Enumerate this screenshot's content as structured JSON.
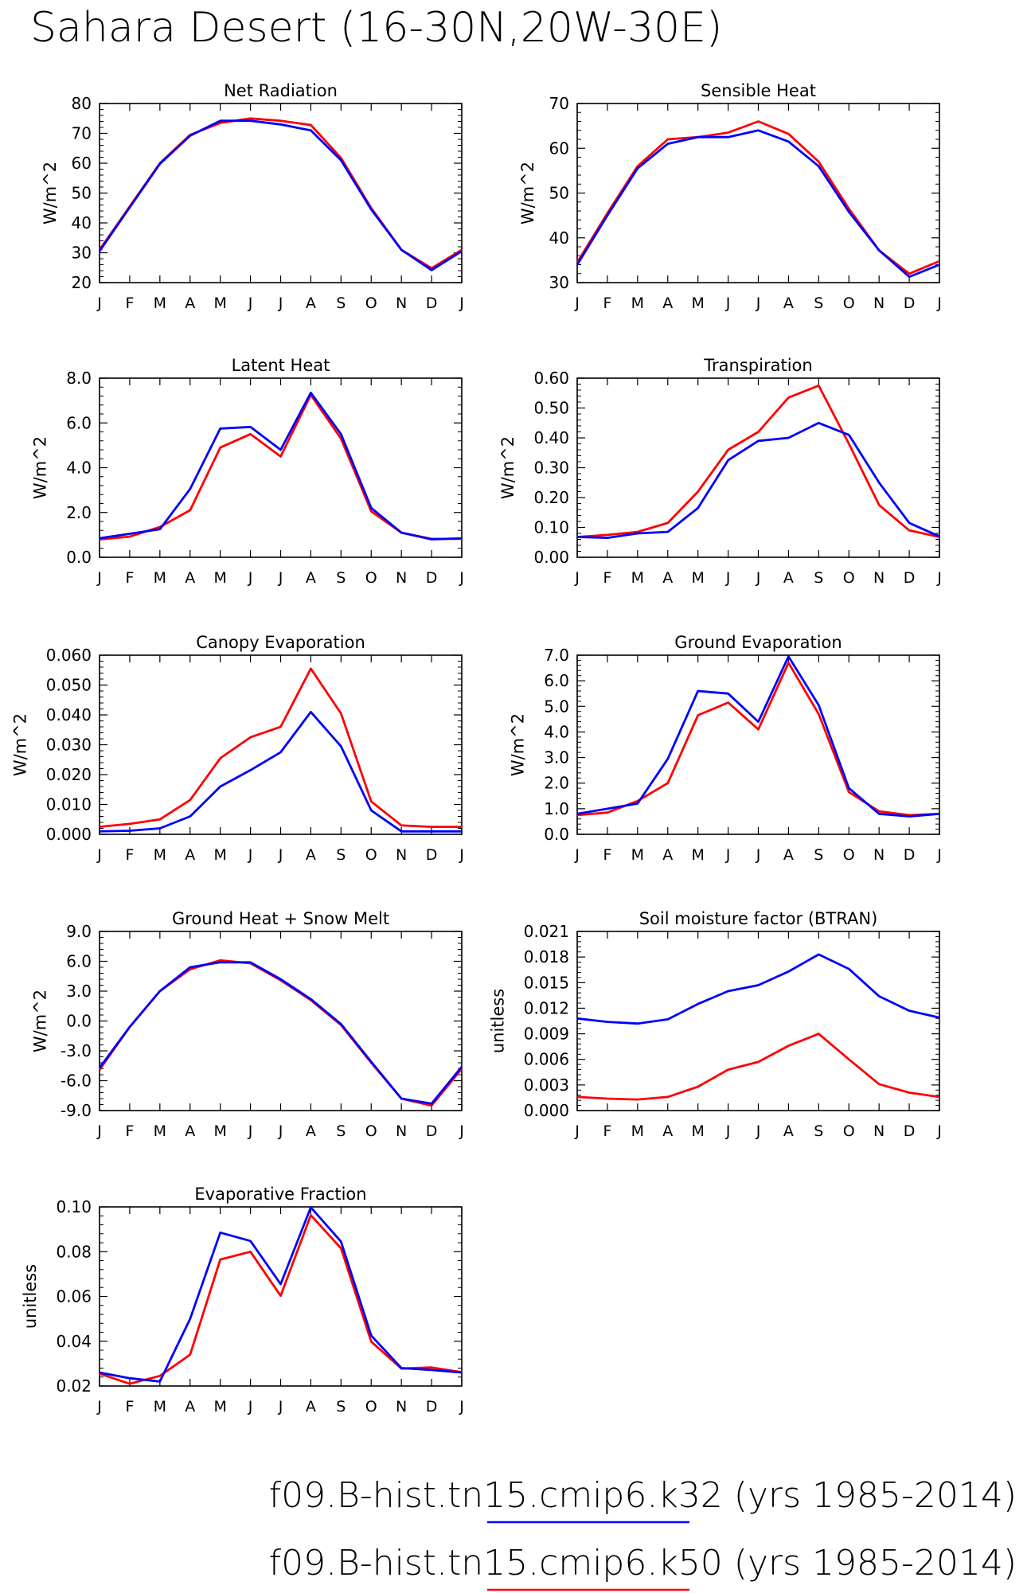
{
  "title": "Sahara Desert (16-30N,20W-30E)",
  "legend": [
    {
      "label": "f09.B-hist.tn15.cmip6.k32 (yrs 1985-2014)",
      "color": "#0000ff"
    },
    {
      "label": "f09.B-hist.tn15.cmip6.k50 (yrs 1985-2014)",
      "color": "#ff0000"
    }
  ],
  "chart_data": [
    {
      "type": "line",
      "title": "Net Radiation",
      "ylabel": "W/m^2",
      "categories": [
        "J",
        "F",
        "M",
        "A",
        "M",
        "J",
        "J",
        "A",
        "S",
        "O",
        "N",
        "D",
        "J"
      ],
      "ylim": [
        20,
        80
      ],
      "yticks": [
        20,
        30,
        40,
        50,
        60,
        70,
        80
      ],
      "ytick_labels": [
        "20",
        "30",
        "40",
        "50",
        "60",
        "70",
        "80"
      ],
      "series": [
        {
          "name": "f09.B-hist.tn15.cmip6.k50",
          "color": "#ff0000",
          "values": [
            31,
            45.5,
            60,
            69.5,
            73.5,
            75,
            74.2,
            72.8,
            61.8,
            45,
            31,
            24.8,
            31
          ]
        },
        {
          "name": "f09.B-hist.tn15.cmip6.k32",
          "color": "#0000ff",
          "values": [
            30.5,
            45.2,
            59.8,
            69.2,
            74.2,
            74.2,
            73,
            71,
            61,
            44.5,
            31,
            24.2,
            30.5
          ]
        }
      ]
    },
    {
      "type": "line",
      "title": "Sensible Heat",
      "ylabel": "W/m^2",
      "categories": [
        "J",
        "F",
        "M",
        "A",
        "M",
        "J",
        "J",
        "A",
        "S",
        "O",
        "N",
        "D",
        "J"
      ],
      "ylim": [
        30,
        70
      ],
      "yticks": [
        30,
        40,
        50,
        60,
        70
      ],
      "ytick_labels": [
        "30",
        "40",
        "50",
        "60",
        "70"
      ],
      "series": [
        {
          "name": "f09.B-hist.tn15.cmip6.k50",
          "color": "#ff0000",
          "values": [
            34.5,
            45.5,
            56,
            62,
            62.5,
            63.5,
            66,
            63.2,
            57,
            46.5,
            37.2,
            32,
            34.8
          ]
        },
        {
          "name": "f09.B-hist.tn15.cmip6.k32",
          "color": "#0000ff",
          "values": [
            34,
            45,
            55.5,
            61,
            62.5,
            62.5,
            64,
            61.5,
            56,
            45.8,
            37.2,
            31.3,
            34
          ]
        }
      ]
    },
    {
      "type": "line",
      "title": "Latent Heat",
      "ylabel": "W/m^2",
      "categories": [
        "J",
        "F",
        "M",
        "A",
        "M",
        "J",
        "J",
        "A",
        "S",
        "O",
        "N",
        "D",
        "J"
      ],
      "ylim": [
        0,
        8
      ],
      "yticks": [
        0,
        2,
        4,
        6,
        8
      ],
      "ytick_labels": [
        "0.0",
        "2.0",
        "4.0",
        "6.0",
        "8.0"
      ],
      "series": [
        {
          "name": "f09.B-hist.tn15.cmip6.k50",
          "color": "#ff0000",
          "values": [
            0.8,
            0.92,
            1.35,
            2.1,
            4.9,
            5.5,
            4.5,
            7.25,
            5.3,
            2.05,
            1.1,
            0.82,
            0.82
          ]
        },
        {
          "name": "f09.B-hist.tn15.cmip6.k32",
          "color": "#0000ff",
          "values": [
            0.85,
            1.05,
            1.25,
            3.05,
            5.75,
            5.82,
            4.8,
            7.35,
            5.5,
            2.2,
            1.1,
            0.8,
            0.85
          ]
        }
      ]
    },
    {
      "type": "line",
      "title": "Transpiration",
      "ylabel": "W/m^2",
      "categories": [
        "J",
        "F",
        "M",
        "A",
        "M",
        "J",
        "J",
        "A",
        "S",
        "O",
        "N",
        "D",
        "J"
      ],
      "ylim": [
        0,
        0.6
      ],
      "yticks": [
        0,
        0.1,
        0.2,
        0.3,
        0.4,
        0.5,
        0.6
      ],
      "ytick_labels": [
        "0.00",
        "0.10",
        "0.20",
        "0.30",
        "0.40",
        "0.50",
        "0.60"
      ],
      "series": [
        {
          "name": "f09.B-hist.tn15.cmip6.k50",
          "color": "#ff0000",
          "values": [
            0.068,
            0.075,
            0.085,
            0.115,
            0.22,
            0.36,
            0.42,
            0.535,
            0.575,
            0.38,
            0.175,
            0.09,
            0.068
          ]
        },
        {
          "name": "f09.B-hist.tn15.cmip6.k32",
          "color": "#0000ff",
          "values": [
            0.068,
            0.065,
            0.08,
            0.085,
            0.165,
            0.325,
            0.39,
            0.4,
            0.45,
            0.41,
            0.25,
            0.115,
            0.07
          ]
        }
      ]
    },
    {
      "type": "line",
      "title": "Canopy Evaporation",
      "ylabel": "W/m^2",
      "categories": [
        "J",
        "F",
        "M",
        "A",
        "M",
        "J",
        "J",
        "A",
        "S",
        "O",
        "N",
        "D",
        "J"
      ],
      "ylim": [
        0,
        0.06
      ],
      "yticks": [
        0,
        0.01,
        0.02,
        0.03,
        0.04,
        0.05,
        0.06
      ],
      "ytick_labels": [
        "0.000",
        "0.010",
        "0.020",
        "0.030",
        "0.040",
        "0.050",
        "0.060"
      ],
      "series": [
        {
          "name": "f09.B-hist.tn15.cmip6.k50",
          "color": "#ff0000",
          "values": [
            0.0025,
            0.0035,
            0.005,
            0.0115,
            0.0255,
            0.0325,
            0.036,
            0.0555,
            0.0405,
            0.011,
            0.003,
            0.0025,
            0.0025
          ]
        },
        {
          "name": "f09.B-hist.tn15.cmip6.k32",
          "color": "#0000ff",
          "values": [
            0.001,
            0.0012,
            0.002,
            0.006,
            0.016,
            0.0215,
            0.0275,
            0.041,
            0.0295,
            0.008,
            0.001,
            0.001,
            0.001
          ]
        }
      ]
    },
    {
      "type": "line",
      "title": "Ground Evaporation",
      "ylabel": "W/m^2",
      "categories": [
        "J",
        "F",
        "M",
        "A",
        "M",
        "J",
        "J",
        "A",
        "S",
        "O",
        "N",
        "D",
        "J"
      ],
      "ylim": [
        0,
        7
      ],
      "yticks": [
        0,
        1,
        2,
        3,
        4,
        5,
        6,
        7
      ],
      "ytick_labels": [
        "0.0",
        "1.0",
        "2.0",
        "3.0",
        "4.0",
        "5.0",
        "6.0",
        "7.0"
      ],
      "series": [
        {
          "name": "f09.B-hist.tn15.cmip6.k50",
          "color": "#ff0000",
          "values": [
            0.75,
            0.85,
            1.3,
            2.0,
            4.65,
            5.15,
            4.1,
            6.7,
            4.7,
            1.65,
            0.9,
            0.75,
            0.8
          ]
        },
        {
          "name": "f09.B-hist.tn15.cmip6.k32",
          "color": "#0000ff",
          "values": [
            0.8,
            1.0,
            1.2,
            2.95,
            5.6,
            5.5,
            4.4,
            6.95,
            5.05,
            1.8,
            0.8,
            0.7,
            0.8
          ]
        }
      ]
    },
    {
      "type": "line",
      "title": "Ground Heat + Snow Melt",
      "ylabel": "W/m^2",
      "categories": [
        "J",
        "F",
        "M",
        "A",
        "M",
        "J",
        "J",
        "A",
        "S",
        "O",
        "N",
        "D",
        "J"
      ],
      "ylim": [
        -9,
        9
      ],
      "yticks": [
        -9,
        -6,
        -3,
        0,
        3,
        6,
        9
      ],
      "ytick_labels": [
        "-9.0",
        "-6.0",
        "-3.0",
        "0.0",
        "3.0",
        "6.0",
        "9.0"
      ],
      "series": [
        {
          "name": "f09.B-hist.tn15.cmip6.k50",
          "color": "#ff0000",
          "values": [
            -4.9,
            -0.6,
            3.0,
            5.2,
            6.1,
            5.8,
            4.1,
            2.1,
            -0.4,
            -4.2,
            -7.8,
            -8.5,
            -4.8
          ]
        },
        {
          "name": "f09.B-hist.tn15.cmip6.k32",
          "color": "#0000ff",
          "values": [
            -4.7,
            -0.6,
            3.0,
            5.4,
            5.9,
            5.9,
            4.2,
            2.2,
            -0.3,
            -4.1,
            -7.8,
            -8.3,
            -4.6
          ]
        }
      ]
    },
    {
      "type": "line",
      "title": "Soil moisture factor (BTRAN)",
      "ylabel": "unitless",
      "categories": [
        "J",
        "F",
        "M",
        "A",
        "M",
        "J",
        "J",
        "A",
        "S",
        "O",
        "N",
        "D",
        "J"
      ],
      "ylim": [
        0,
        0.021
      ],
      "yticks": [
        0,
        0.003,
        0.006,
        0.009,
        0.012,
        0.015,
        0.018,
        0.021
      ],
      "ytick_labels": [
        "0.000",
        "0.003",
        "0.006",
        "0.009",
        "0.012",
        "0.015",
        "0.018",
        "0.021"
      ],
      "series": [
        {
          "name": "f09.B-hist.tn15.cmip6.k50",
          "color": "#ff0000",
          "values": [
            0.0016,
            0.0014,
            0.0013,
            0.0016,
            0.0028,
            0.0048,
            0.0057,
            0.0076,
            0.009,
            0.006,
            0.0031,
            0.0021,
            0.0016
          ]
        },
        {
          "name": "f09.B-hist.tn15.cmip6.k32",
          "color": "#0000ff",
          "values": [
            0.0108,
            0.0104,
            0.0102,
            0.0107,
            0.0125,
            0.014,
            0.0147,
            0.0163,
            0.0183,
            0.0166,
            0.0134,
            0.0117,
            0.0109
          ]
        }
      ]
    },
    {
      "type": "line",
      "title": "Evaporative Fraction",
      "ylabel": "unitless",
      "categories": [
        "J",
        "F",
        "M",
        "A",
        "M",
        "J",
        "J",
        "A",
        "S",
        "O",
        "N",
        "D",
        "J"
      ],
      "ylim": [
        0.02,
        0.1
      ],
      "yticks": [
        0.02,
        0.04,
        0.06,
        0.08,
        0.1
      ],
      "ytick_labels": [
        "0.02",
        "0.04",
        "0.06",
        "0.08",
        "0.10"
      ],
      "series": [
        {
          "name": "f09.B-hist.tn15.cmip6.k50",
          "color": "#ff0000",
          "values": [
            0.0255,
            0.021,
            0.0245,
            0.034,
            0.0765,
            0.08,
            0.0603,
            0.0963,
            0.0815,
            0.0398,
            0.0278,
            0.0283,
            0.0262
          ]
        },
        {
          "name": "f09.B-hist.tn15.cmip6.k32",
          "color": "#0000ff",
          "values": [
            0.026,
            0.0235,
            0.022,
            0.05,
            0.0885,
            0.0848,
            0.0655,
            0.0998,
            0.0845,
            0.0425,
            0.028,
            0.0272,
            0.026
          ]
        }
      ]
    }
  ]
}
